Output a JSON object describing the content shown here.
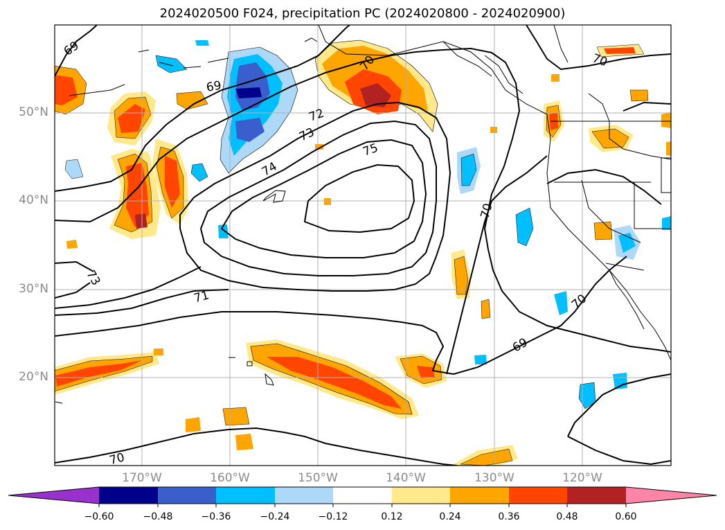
{
  "title": "2024020500 F024, precipitation PC (2024020800 - 2024020900)",
  "map": {
    "projection": "lat-lon",
    "lat_labels": [
      "50°N",
      "40°N",
      "30°N",
      "20°N"
    ],
    "lon_labels": [
      "170°W",
      "160°W",
      "150°W",
      "140°W",
      "130°W",
      "120°W"
    ],
    "gridlines": true,
    "contour_labels": [
      "69",
      "69",
      "70",
      "70",
      "72",
      "73",
      "74",
      "75",
      "73",
      "71",
      "70",
      "70",
      "69",
      "70"
    ]
  },
  "colorbar": {
    "ticks": [
      "−0.60",
      "−0.48",
      "−0.36",
      "−0.24",
      "−0.12",
      "0.12",
      "0.24",
      "0.36",
      "0.48",
      "0.60"
    ],
    "colors": [
      "#9932cc",
      "#00008b",
      "#3a5fcd",
      "#00bfff",
      "#add8f7",
      "#ffffff",
      "#ffe98a",
      "#ffa500",
      "#ff4500",
      "#b22222",
      "#ff85a8"
    ],
    "extend": "both"
  },
  "field_colors": {
    "neg_strong": "#3a5fcd",
    "neg_mid": "#00bfff",
    "neg_weak": "#add8f7",
    "pos_weak": "#ffe98a",
    "pos_mid": "#ffa500",
    "pos_strong": "#ff4500",
    "pos_max": "#b22222"
  }
}
